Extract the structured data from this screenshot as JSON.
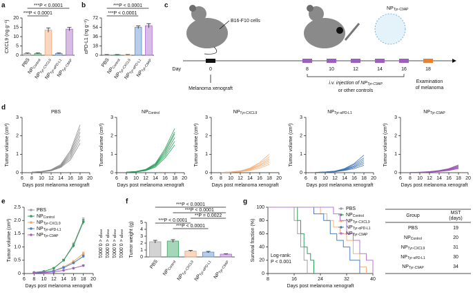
{
  "chart_data": [
    {
      "type": "bar",
      "panel": "a",
      "ylabel": "CXCL9 (ng g⁻¹)",
      "categories": [
        "PBS",
        {
          "name": "NP",
          "sub": "Control"
        },
        {
          "name": "NP",
          "sub": "Tyr-CXCL9"
        },
        {
          "name": "NP",
          "sub": "Tyr-αPD-L1"
        },
        {
          "name": "NP",
          "sub": "Tyr-C9AP"
        }
      ],
      "values": [
        1,
        1,
        13.5,
        1,
        14
      ],
      "errors": [
        0.2,
        0.2,
        1.2,
        0.2,
        0.9
      ],
      "colors": [
        "#9e9e9e",
        "#3aa564",
        "#f2a46e",
        "#5b8fd0",
        "#a868c9"
      ],
      "ylim": [
        0,
        20
      ],
      "yticks": [
        0,
        5,
        10,
        15,
        20
      ],
      "annotations": [
        "***P < 0.0001",
        "***P < 0.0001"
      ]
    },
    {
      "type": "bar",
      "panel": "b",
      "ylabel": "αPD-L1 (ng g⁻¹)",
      "categories": [
        "PBS",
        {
          "name": "NP",
          "sub": "Control"
        },
        {
          "name": "NP",
          "sub": "Tyr-CXCL9"
        },
        {
          "name": "NP",
          "sub": "Tyr-αPD-L1"
        },
        {
          "name": "NP",
          "sub": "Tyr-C9AP"
        }
      ],
      "values": [
        1,
        1,
        1,
        54,
        57
      ],
      "errors": [
        0.3,
        0.3,
        0.3,
        2.5,
        4
      ],
      "colors": [
        "#9e9e9e",
        "#3aa564",
        "#f2a46e",
        "#5b8fd0",
        "#a868c9"
      ],
      "ylim": [
        0,
        72
      ],
      "yticks": [
        0,
        18,
        36,
        54,
        72
      ],
      "annotations": [
        "***P < 0.0001",
        "***P < 0.0001"
      ]
    },
    {
      "type": "line",
      "panel": "d",
      "title": "PBS",
      "color": "#8c8c8c",
      "xlabel": "Days post melanoma xenograft",
      "ylabel": "Tumor volume (cm³)",
      "x": [
        8,
        10,
        12,
        14,
        16,
        18
      ],
      "xlim": [
        6,
        20
      ],
      "xticks": [
        6,
        8,
        10,
        12,
        14,
        16,
        18,
        20
      ],
      "ylim": [
        0,
        3
      ],
      "yticks": [
        0,
        1,
        2,
        3
      ],
      "series": [
        {
          "values": [
            0.03,
            0.06,
            0.16,
            0.45,
            1.2,
            2.6
          ]
        },
        {
          "values": [
            0.03,
            0.07,
            0.15,
            0.4,
            1.1,
            2.4
          ]
        },
        {
          "values": [
            0.02,
            0.05,
            0.14,
            0.38,
            1.0,
            2.2
          ]
        },
        {
          "values": [
            0.03,
            0.06,
            0.13,
            0.35,
            0.9,
            2.0
          ]
        },
        {
          "values": [
            0.02,
            0.05,
            0.12,
            0.32,
            0.8,
            1.8
          ]
        },
        {
          "values": [
            0.02,
            0.04,
            0.1,
            0.28,
            0.7,
            1.6
          ]
        }
      ]
    },
    {
      "type": "line",
      "title": {
        "name": "NP",
        "sub": "Control"
      },
      "color": "#2e9e5b",
      "xlabel": "Days post melanoma xenograft",
      "ylabel": "Tumor volume (cm³)",
      "x": [
        8,
        10,
        12,
        14,
        16,
        18
      ],
      "xlim": [
        6,
        20
      ],
      "xticks": [
        6,
        8,
        10,
        12,
        14,
        16,
        18,
        20
      ],
      "ylim": [
        0,
        3
      ],
      "yticks": [
        0,
        1,
        2,
        3
      ],
      "series": [
        {
          "values": [
            0.03,
            0.07,
            0.18,
            0.5,
            1.3,
            2.4
          ]
        },
        {
          "values": [
            0.03,
            0.06,
            0.16,
            0.45,
            1.2,
            2.2
          ]
        },
        {
          "values": [
            0.02,
            0.05,
            0.15,
            0.42,
            1.1,
            2.1
          ]
        },
        {
          "values": [
            0.03,
            0.06,
            0.14,
            0.4,
            1.0,
            1.9
          ]
        },
        {
          "values": [
            0.02,
            0.05,
            0.12,
            0.35,
            0.9,
            1.7
          ]
        },
        {
          "values": [
            0.02,
            0.04,
            0.11,
            0.3,
            0.8,
            1.5
          ]
        }
      ]
    },
    {
      "type": "line",
      "title": {
        "name": "NP",
        "sub": "Tyr-CXCL9"
      },
      "color": "#f5b07a",
      "xlabel": "Days post melanoma xenograft",
      "ylabel": "Tumor volume (cm³)",
      "x": [
        8,
        10,
        12,
        14,
        16,
        18
      ],
      "xlim": [
        6,
        20
      ],
      "xticks": [
        6,
        8,
        10,
        12,
        14,
        16,
        18,
        20
      ],
      "ylim": [
        0,
        3
      ],
      "yticks": [
        0,
        1,
        2,
        3
      ],
      "series": [
        {
          "values": [
            0.02,
            0.04,
            0.1,
            0.25,
            0.55,
            1.0
          ]
        },
        {
          "values": [
            0.02,
            0.04,
            0.09,
            0.22,
            0.5,
            0.85
          ]
        },
        {
          "values": [
            0.02,
            0.03,
            0.08,
            0.2,
            0.42,
            0.75
          ]
        },
        {
          "values": [
            0.01,
            0.03,
            0.07,
            0.18,
            0.38,
            0.65
          ]
        },
        {
          "values": [
            0.01,
            0.03,
            0.06,
            0.15,
            0.32,
            0.55
          ]
        },
        {
          "values": [
            0.01,
            0.02,
            0.05,
            0.12,
            0.25,
            0.45
          ]
        }
      ]
    },
    {
      "type": "line",
      "title": {
        "name": "NP",
        "sub": "Tyr-αPD-L1"
      },
      "color": "#3f73b8",
      "xlabel": "Days post melanoma xenograft",
      "ylabel": "Tumor volume (cm³)",
      "x": [
        8,
        10,
        12,
        14,
        16,
        18
      ],
      "xlim": [
        6,
        20
      ],
      "xticks": [
        6,
        8,
        10,
        12,
        14,
        16,
        18,
        20
      ],
      "ylim": [
        0,
        3
      ],
      "yticks": [
        0,
        1,
        2,
        3
      ],
      "series": [
        {
          "values": [
            0.02,
            0.04,
            0.09,
            0.22,
            0.5,
            0.95
          ]
        },
        {
          "values": [
            0.02,
            0.04,
            0.08,
            0.2,
            0.45,
            0.8
          ]
        },
        {
          "values": [
            0.02,
            0.03,
            0.07,
            0.18,
            0.38,
            0.7
          ]
        },
        {
          "values": [
            0.01,
            0.03,
            0.06,
            0.16,
            0.33,
            0.6
          ]
        },
        {
          "values": [
            0.01,
            0.02,
            0.05,
            0.14,
            0.28,
            0.5
          ]
        },
        {
          "values": [
            0.01,
            0.02,
            0.05,
            0.12,
            0.22,
            0.4
          ]
        }
      ]
    },
    {
      "type": "line",
      "title": {
        "name": "NP",
        "sub": "Tyr-C9AP"
      },
      "color": "#9a55b5",
      "xlabel": "Days post melanoma xenograft",
      "ylabel": "Tumor volume (cm³)",
      "x": [
        8,
        10,
        12,
        14,
        16,
        18
      ],
      "xlim": [
        6,
        20
      ],
      "xticks": [
        6,
        8,
        10,
        12,
        14,
        16,
        18,
        20
      ],
      "ylim": [
        0,
        3
      ],
      "yticks": [
        0,
        1,
        2,
        3
      ],
      "series": [
        {
          "values": [
            0.01,
            0.03,
            0.06,
            0.12,
            0.22,
            0.42
          ]
        },
        {
          "values": [
            0.01,
            0.02,
            0.05,
            0.1,
            0.2,
            0.38
          ]
        },
        {
          "values": [
            0.01,
            0.02,
            0.05,
            0.1,
            0.18,
            0.34
          ]
        },
        {
          "values": [
            0.01,
            0.02,
            0.04,
            0.08,
            0.16,
            0.3
          ]
        },
        {
          "values": [
            0.01,
            0.02,
            0.04,
            0.07,
            0.14,
            0.26
          ]
        },
        {
          "values": [
            0.01,
            0.01,
            0.03,
            0.06,
            0.12,
            0.22
          ]
        }
      ]
    },
    {
      "type": "line",
      "panel": "e",
      "xlabel": "Days post melanoma xenograft",
      "ylabel": "Tumor volume (cm³)",
      "x": [
        8,
        10,
        12,
        14,
        16,
        18
      ],
      "xlim": [
        6,
        20
      ],
      "xticks": [
        6,
        8,
        10,
        12,
        14,
        16,
        18,
        20
      ],
      "ylim": [
        0,
        2.5
      ],
      "yticks": [
        0,
        0.5,
        {
          "value": 1,
          "label": "1.0"
        },
        1.5,
        {
          "value": 2,
          "label": "2.0"
        },
        2.5
      ],
      "series": [
        {
          "name": "PBS",
          "color": "#9e9e9e",
          "values": [
            0.04,
            0.08,
            0.2,
            0.5,
            1.1,
            2.0
          ],
          "errors": [
            0.01,
            0.01,
            0.02,
            0.04,
            0.07,
            0.1
          ]
        },
        {
          "name": "NP",
          "sub": "Control",
          "color": "#2e9e5b",
          "values": [
            0.04,
            0.08,
            0.2,
            0.5,
            1.05,
            1.95
          ],
          "errors": [
            0.01,
            0.01,
            0.02,
            0.04,
            0.07,
            0.1
          ]
        },
        {
          "name": "NP",
          "sub": "Tyr-CXCL9",
          "color": "#f5a56a",
          "values": [
            0.03,
            0.05,
            0.1,
            0.25,
            0.45,
            0.75
          ],
          "errors": [
            0.01,
            0.01,
            0.01,
            0.02,
            0.04,
            0.06
          ]
        },
        {
          "name": "NP",
          "sub": "Tyr-αPD-L1",
          "color": "#4a7fc1",
          "values": [
            0.03,
            0.05,
            0.1,
            0.22,
            0.4,
            0.65
          ],
          "errors": [
            0.01,
            0.01,
            0.01,
            0.02,
            0.03,
            0.05
          ]
        },
        {
          "name": "NP",
          "sub": "Tyr-C9AP",
          "color": "#a35fbf",
          "values": [
            0.02,
            0.03,
            0.06,
            0.12,
            0.2,
            0.3
          ],
          "errors": [
            0.005,
            0.005,
            0.01,
            0.01,
            0.02,
            0.03
          ]
        }
      ],
      "annotations": [
        "***P < 0.0001",
        "***P < 0.0001",
        "***P < 0.0001",
        "***P < 0.0001"
      ]
    },
    {
      "type": "bar",
      "panel": "f",
      "ylabel": "Tumor weight (g)",
      "categories": [
        "PBS",
        {
          "name": "NP",
          "sub": "Control"
        },
        {
          "name": "NP",
          "sub": "Tyr-CXCL9"
        },
        {
          "name": "NP",
          "sub": "Tyr-αPD-L1"
        },
        {
          "name": "NP",
          "sub": "Tyr-C9AP"
        }
      ],
      "values": [
        2.2,
        2.3,
        0.85,
        0.7,
        0.4
      ],
      "errors": [
        0.2,
        0.2,
        0.1,
        0.1,
        0.05
      ],
      "colors": [
        "#9e9e9e",
        "#3aa564",
        "#f2a46e",
        "#5b8fd0",
        "#a868c9"
      ],
      "ylim": [
        0,
        5
      ],
      "yticks": [
        0,
        1,
        2,
        3,
        4,
        5
      ],
      "annotations": [
        "***P < 0.0001",
        "***P < 0.0001",
        "**P = 0.0022",
        "***P < 0.0001",
        "***P < 0.0001"
      ]
    },
    {
      "type": "step",
      "panel": "g",
      "xlabel": "Days post melanoma xenograft",
      "ylabel": "Survival fraction (%)",
      "xlim": [
        8,
        40
      ],
      "xticks": [
        8,
        16,
        24,
        32,
        40
      ],
      "ylim": [
        0,
        100
      ],
      "yticks": [
        0,
        20,
        40,
        60,
        80,
        100
      ],
      "annotations": [
        "Log-rank:",
        "P < 0.001"
      ],
      "series": [
        {
          "name": "PBS",
          "color": "#9e9e9e",
          "x": [
            8,
            16,
            17,
            18,
            19,
            20
          ],
          "values": [
            100,
            80,
            60,
            40,
            20,
            0
          ]
        },
        {
          "name": "NP",
          "sub": "Control",
          "color": "#2e9e5b",
          "x": [
            8,
            17,
            18,
            19,
            20,
            21,
            22
          ],
          "values": [
            100,
            80,
            60,
            40,
            30,
            20,
            0
          ]
        },
        {
          "name": "NP",
          "sub": "Tyr-CXCL9",
          "color": "#f5b07a",
          "x": [
            8,
            24,
            26,
            28,
            30,
            32,
            34,
            36,
            38
          ],
          "values": [
            100,
            90,
            80,
            70,
            60,
            50,
            30,
            10,
            0
          ]
        },
        {
          "name": "NP",
          "sub": "Tyr-αPD-L1",
          "color": "#4a7fc1",
          "x": [
            8,
            22,
            25,
            27,
            29,
            31,
            33,
            36
          ],
          "values": [
            100,
            90,
            80,
            60,
            50,
            40,
            20,
            0
          ]
        },
        {
          "name": "NP",
          "sub": "Tyr-C9AP",
          "color": "#b67ad0",
          "x": [
            8,
            28,
            30,
            32,
            34,
            36,
            38,
            40
          ],
          "values": [
            100,
            90,
            80,
            60,
            50,
            30,
            20,
            0
          ]
        }
      ]
    }
  ],
  "diagram": {
    "panel": "c",
    "cells": "B16-F10 cells",
    "xenograft": "Melanoma xenograft",
    "day": "Day",
    "days": [
      0,
      8,
      10,
      12,
      14,
      16,
      18
    ],
    "np": {
      "name": "NP",
      "sub": "Tyr-C9AP"
    },
    "injection": {
      "name": "i.v. injection of NP",
      "sub": "Tyr-C9AP",
      "rest": "or other controls"
    },
    "examination": [
      "Examination",
      "of melanoma"
    ]
  },
  "table": {
    "group": "Group",
    "mst": [
      "MST",
      "(days)"
    ],
    "rows": [
      [
        "PBS",
        19
      ],
      [
        {
          "name": "NP",
          "sub": "Control"
        },
        20
      ],
      [
        {
          "name": "NP",
          "sub": "Tyr-CXCL9"
        },
        31
      ],
      [
        {
          "name": "NP",
          "sub": "Tyr-αPD-L1"
        },
        30
      ],
      [
        {
          "name": "NP",
          "sub": "Tyr-C9AP"
        },
        34
      ]
    ]
  }
}
